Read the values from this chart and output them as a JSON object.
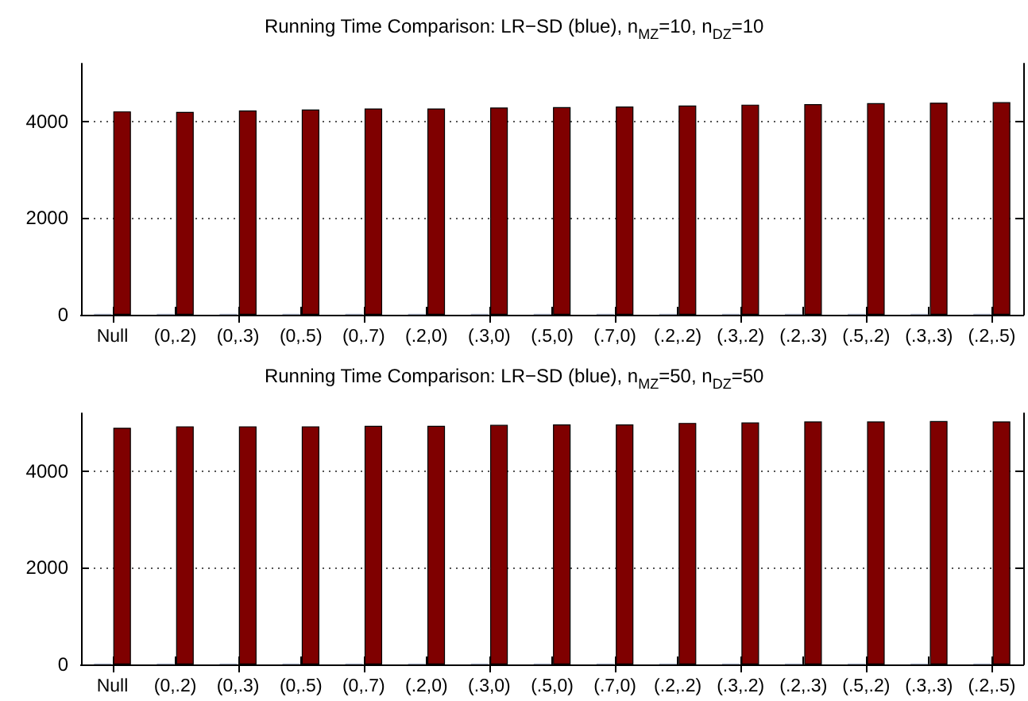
{
  "chart_data": [
    {
      "type": "bar",
      "title": "Running Time Comparison: LR−SD (blue), n$_{MZ}$=10, n$_{DZ}$=10",
      "categories": [
        "Null",
        "(0,.2)",
        "(0,.3)",
        "(0,.5)",
        "(0,.7)",
        "(.2,0)",
        "(.3,0)",
        "(.5,0)",
        "(.7,0)",
        "(.2,.2)",
        "(.3,.2)",
        "(.2,.3)",
        "(.5,.2)",
        "(.3,.3)",
        "(.2,.5)"
      ],
      "series": [
        {
          "color": "#aab4c8",
          "values": [
            20,
            20,
            20,
            20,
            20,
            20,
            20,
            20,
            20,
            20,
            20,
            20,
            20,
            20,
            20
          ]
        },
        {
          "color": "#7f0000",
          "values": [
            4210,
            4200,
            4230,
            4250,
            4270,
            4270,
            4290,
            4300,
            4310,
            4330,
            4350,
            4360,
            4380,
            4390,
            4400
          ]
        }
      ],
      "ylim": [
        0,
        5200
      ],
      "yticks": [
        0,
        2000,
        4000
      ],
      "grid": "y"
    },
    {
      "type": "bar",
      "title": "Running Time Comparison: LR−SD (blue), n$_{MZ}$=50, n$_{DZ}$=50",
      "categories": [
        "Null",
        "(0,.2)",
        "(0,.3)",
        "(0,.5)",
        "(0,.7)",
        "(.2,0)",
        "(.3,0)",
        "(.5,0)",
        "(.7,0)",
        "(.2,.2)",
        "(.3,.2)",
        "(.2,.3)",
        "(.5,.2)",
        "(.3,.3)",
        "(.2,.5)"
      ],
      "series": [
        {
          "color": "#aab4c8",
          "values": [
            20,
            20,
            20,
            20,
            20,
            20,
            20,
            20,
            20,
            20,
            20,
            20,
            20,
            20,
            20
          ]
        },
        {
          "color": "#7f0000",
          "values": [
            4900,
            4930,
            4930,
            4930,
            4940,
            4940,
            4960,
            4970,
            4970,
            5000,
            5010,
            5030,
            5030,
            5040,
            5030
          ]
        }
      ],
      "ylim": [
        0,
        5200
      ],
      "yticks": [
        0,
        2000,
        4000
      ],
      "grid": "y"
    }
  ]
}
